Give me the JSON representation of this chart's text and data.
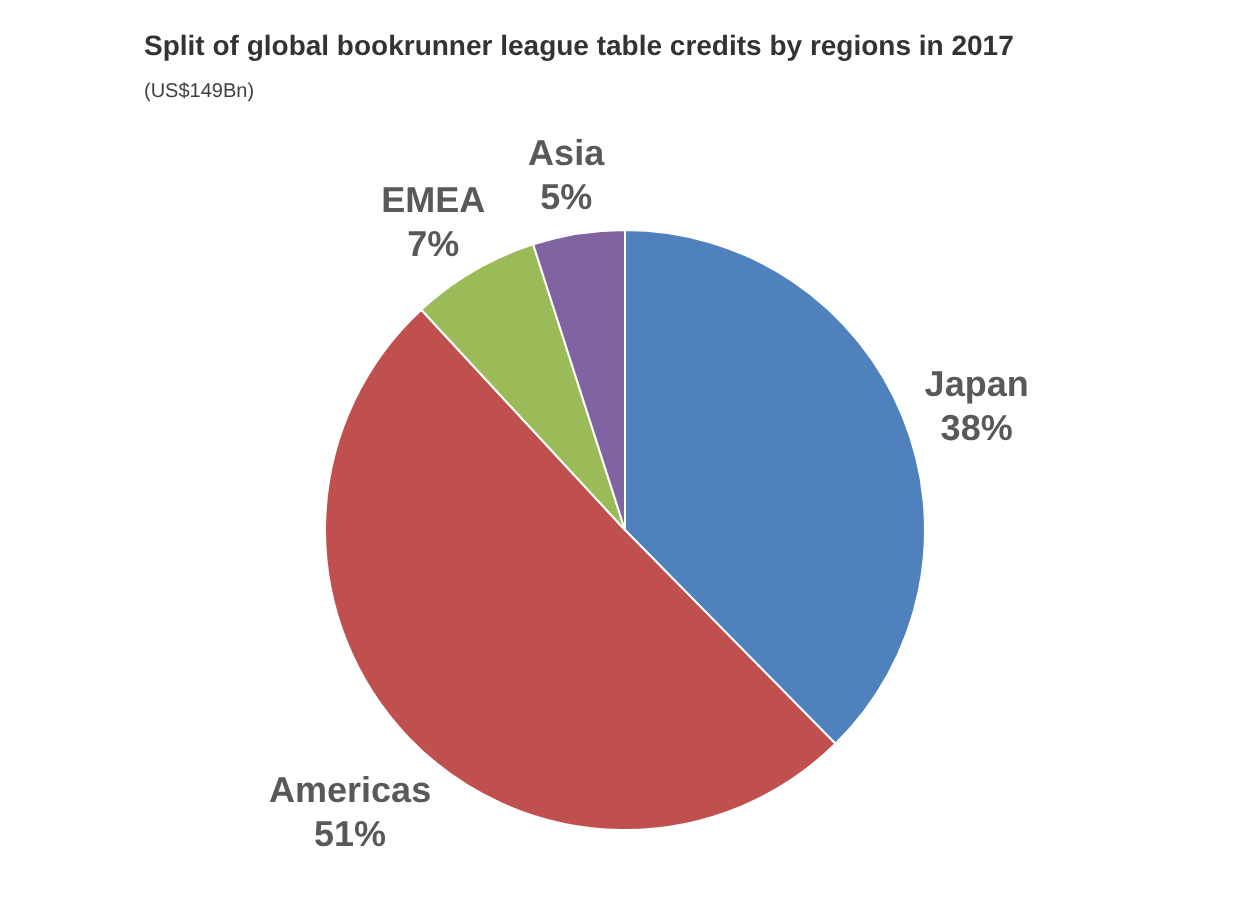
{
  "chart_data": {
    "type": "pie",
    "title": "Split of global bookrunner league table credits by regions in 2017",
    "subtitle": "(US$149Bn)",
    "categories": [
      "Japan",
      "Americas",
      "EMEA",
      "Asia"
    ],
    "values": [
      38,
      51,
      7,
      5
    ],
    "value_labels": [
      "38%",
      "51%",
      "7%",
      "5%"
    ],
    "colors": [
      "#4f81bd",
      "#c0504d",
      "#9bbb59",
      "#8064a2"
    ],
    "legend": false
  }
}
